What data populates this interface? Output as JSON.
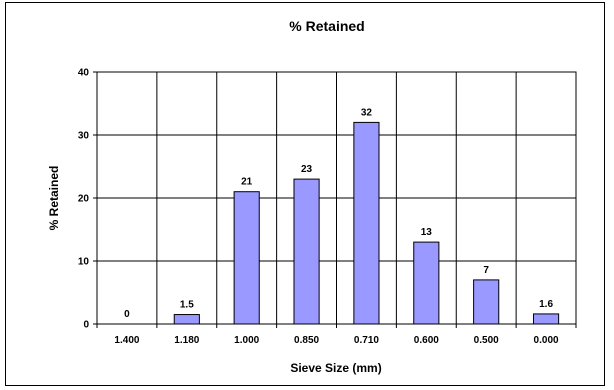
{
  "chart_data": {
    "type": "bar",
    "title": "% Retained",
    "xlabel": "Sieve Size (mm)",
    "ylabel": "% Retained",
    "categories": [
      "1.400",
      "1.180",
      "1.000",
      "0.850",
      "0.710",
      "0.600",
      "0.500",
      "0.000"
    ],
    "values": [
      0,
      1.5,
      21,
      23,
      32,
      13,
      7,
      1.6
    ],
    "data_labels": [
      "0",
      "1.5",
      "21",
      "23",
      "32",
      "13",
      "7",
      "1.6"
    ],
    "ylim": [
      0,
      40
    ],
    "yticks": [
      0,
      10,
      20,
      30,
      40
    ],
    "ytick_labels": [
      "0",
      "10",
      "20",
      "30",
      "40"
    ],
    "grid": true,
    "bar_color": "#9999ff",
    "bar_edge_color": "#000000"
  }
}
